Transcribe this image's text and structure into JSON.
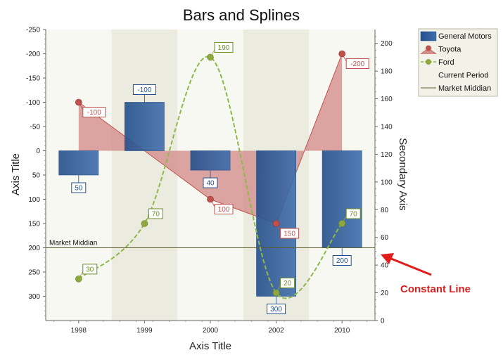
{
  "chart_data": {
    "type": "bar",
    "title": "Bars and Splines",
    "xlabel": "Axis Title",
    "ylabel": "Axis Title",
    "y2label": "Secondary Axis",
    "categories": [
      "1998",
      "1999",
      "2000",
      "2002",
      "2010"
    ],
    "ylim": [
      -250,
      350
    ],
    "y_inverted": true,
    "y_ticks": [
      -250,
      -200,
      -150,
      -100,
      -50,
      0,
      50,
      100,
      150,
      200,
      250,
      300
    ],
    "y2lim": [
      0,
      210
    ],
    "y2_ticks": [
      0,
      20,
      40,
      60,
      80,
      100,
      120,
      140,
      160,
      180,
      200
    ],
    "series": [
      {
        "name": "General Motors",
        "type": "bar",
        "values": [
          50,
          -100,
          40,
          300,
          200
        ],
        "labels": [
          "50",
          "-100",
          "40",
          "300",
          "200"
        ]
      },
      {
        "name": "Toyota",
        "type": "area",
        "values": [
          -100,
          null,
          100,
          150,
          -200
        ],
        "labels": [
          "-100",
          "",
          "100",
          "150",
          "-200"
        ]
      },
      {
        "name": "Ford",
        "type": "spline",
        "axis": "secondary",
        "values": [
          30,
          70,
          190,
          20,
          70
        ],
        "labels": [
          "30",
          "70",
          "190",
          "20",
          "70"
        ]
      }
    ],
    "legend": {
      "position": "top-right",
      "items": [
        "General Motors",
        "Toyota",
        "Ford",
        "Current Period",
        "Market Middian"
      ]
    },
    "constant_line": {
      "name": "Market Middian",
      "value": 200
    },
    "annotation": "Constant Line",
    "grid": false
  },
  "colors": {
    "bar": "#3f6ead",
    "bar_dark": "#244f8a",
    "toyota": "#c0504d",
    "toyota_fill": "#d48f8c",
    "ford": "#8fb84b",
    "ford_point": "#8fa83e",
    "strip_light": "#f8f8f3",
    "strip_dark": "#ecebdf",
    "constant_line": "#5b5b2e",
    "arrow": "#e21b1b"
  }
}
